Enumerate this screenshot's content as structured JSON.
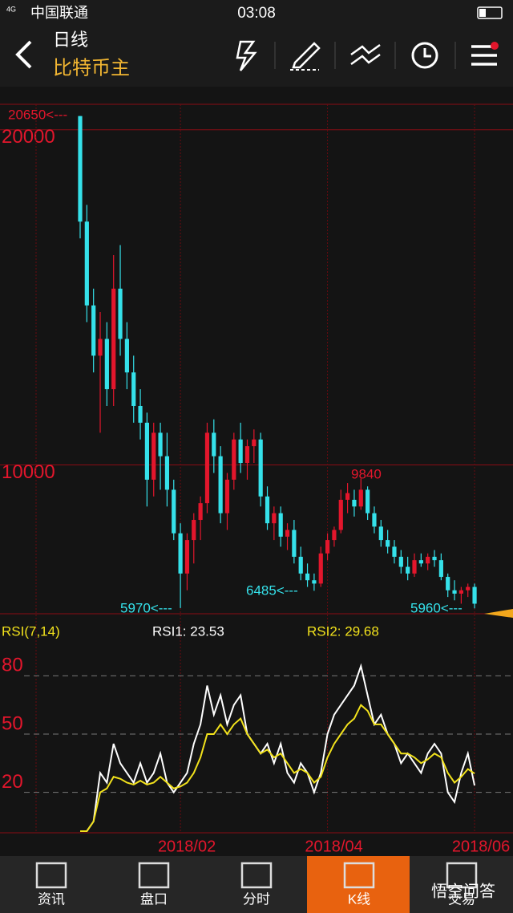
{
  "status_bar": {
    "network": "4G",
    "carrier": "中国联通",
    "time": "03:08"
  },
  "header": {
    "period": "日线",
    "symbol": "比特币主"
  },
  "chart_data": [
    {
      "type": "candlestick",
      "categories": [
        null,
        null,
        null,
        null,
        null,
        null,
        null,
        null,
        null,
        null,
        null,
        null,
        null,
        null,
        null,
        "2018/02",
        null,
        null,
        null,
        null,
        null,
        null,
        null,
        null,
        null,
        null,
        null,
        null,
        null,
        null,
        null,
        null,
        null,
        null,
        null,
        null,
        null,
        "2018/04",
        null,
        null,
        null,
        null,
        null,
        null,
        null,
        null,
        null,
        null,
        null,
        null,
        null,
        null,
        null,
        null,
        null,
        null,
        null,
        null,
        null,
        "2018/06"
      ],
      "open": [
        20650,
        17500,
        15000,
        13500,
        14000,
        12500,
        15500,
        14000,
        13000,
        12000,
        11500,
        9800,
        11200,
        10500,
        9500,
        8200,
        7000,
        8000,
        8600,
        9100,
        11200,
        10500,
        8800,
        9800,
        11000,
        10300,
        10800,
        11000,
        9300,
        8500,
        8800,
        8100,
        8300,
        7500,
        7000,
        6800,
        6700,
        7600,
        8000,
        8300,
        9200,
        9200,
        9000,
        9500,
        8800,
        8400,
        8000,
        7800,
        7500,
        7200,
        7000,
        7400,
        7300,
        7500,
        7400,
        6900,
        6500,
        6400,
        6500,
        6600
      ],
      "high": [
        20650,
        18000,
        15500,
        14800,
        14500,
        16500,
        16800,
        14500,
        13500,
        12500,
        11800,
        11500,
        11500,
        11200,
        9800,
        8500,
        8200,
        8800,
        9300,
        11500,
        11600,
        10800,
        10000,
        11200,
        11500,
        11000,
        11300,
        11200,
        9600,
        9000,
        9000,
        8500,
        8600,
        7800,
        7300,
        7000,
        7800,
        8200,
        8400,
        9500,
        9700,
        9500,
        9840,
        9600,
        9000,
        8600,
        8300,
        8000,
        7700,
        7500,
        7600,
        7600,
        7600,
        7700,
        7600,
        7000,
        6800,
        6600,
        6700,
        6700
      ],
      "low": [
        17000,
        14500,
        13000,
        11200,
        12000,
        12000,
        13500,
        12500,
        11500,
        11000,
        9000,
        9300,
        9500,
        9000,
        8000,
        5970,
        6500,
        7300,
        8000,
        8800,
        10000,
        8500,
        8300,
        9500,
        10000,
        9800,
        10300,
        9000,
        8300,
        8000,
        7800,
        7700,
        7300,
        6800,
        6600,
        6485,
        6600,
        7400,
        7800,
        8200,
        8800,
        8700,
        8900,
        8600,
        8200,
        7800,
        7600,
        7300,
        7000,
        6800,
        6900,
        7200,
        7100,
        7200,
        6800,
        6300,
        6200,
        6100,
        6300,
        5960
      ],
      "close": [
        17500,
        15000,
        13500,
        14000,
        12500,
        15500,
        14000,
        13000,
        12000,
        11500,
        9800,
        11200,
        10500,
        9500,
        8200,
        7000,
        8000,
        8600,
        9100,
        11200,
        10500,
        8800,
        9800,
        11000,
        10300,
        10800,
        11000,
        9300,
        8500,
        8800,
        8100,
        8300,
        7500,
        7000,
        6800,
        6700,
        7600,
        8000,
        8300,
        9200,
        9400,
        9000,
        9500,
        8800,
        8400,
        8000,
        7800,
        7500,
        7200,
        7000,
        7400,
        7300,
        7500,
        7400,
        6900,
        6500,
        6400,
        6500,
        6600,
        6100
      ],
      "up_color": "#e3162c",
      "down_color": "#35e1ea",
      "ylim": [
        5800,
        21000
      ],
      "yticks": [
        10000,
        20000
      ],
      "annotations": [
        {
          "text": "20650<---"
        },
        {
          "text": "5970<---"
        },
        {
          "text": "6485<---"
        },
        {
          "text": "9840"
        },
        {
          "text": "5960<---"
        }
      ]
    },
    {
      "type": "line",
      "title": "RSI(7,14)",
      "series": [
        {
          "name": "RSI1: 23.53",
          "color": "#ffffff",
          "values": [
            0,
            0,
            5,
            30,
            25,
            45,
            35,
            30,
            25,
            35,
            25,
            30,
            40,
            25,
            20,
            25,
            30,
            45,
            55,
            75,
            60,
            70,
            55,
            65,
            70,
            50,
            45,
            40,
            45,
            35,
            45,
            30,
            25,
            35,
            30,
            20,
            30,
            50,
            60,
            65,
            70,
            75,
            85,
            70,
            55,
            60,
            50,
            45,
            35,
            40,
            35,
            30,
            40,
            45,
            40,
            20,
            15,
            30,
            40,
            23.53
          ]
        },
        {
          "name": "RSI2: 29.68",
          "color": "#f2e21c",
          "values": [
            0,
            0,
            5,
            20,
            22,
            28,
            27,
            25,
            24,
            26,
            24,
            25,
            28,
            25,
            22,
            23,
            25,
            30,
            38,
            50,
            50,
            55,
            50,
            55,
            58,
            50,
            45,
            40,
            42,
            38,
            40,
            35,
            30,
            32,
            30,
            25,
            28,
            38,
            45,
            50,
            55,
            58,
            65,
            62,
            55,
            55,
            50,
            45,
            40,
            40,
            38,
            35,
            37,
            40,
            38,
            30,
            25,
            28,
            32,
            29.68
          ]
        }
      ],
      "ylim": [
        0,
        100
      ],
      "yticks": [
        20,
        50,
        80
      ]
    }
  ],
  "tabs": [
    "资讯",
    "盘口",
    "分时",
    "K线",
    "交易"
  ],
  "watermark": "悟空问答"
}
